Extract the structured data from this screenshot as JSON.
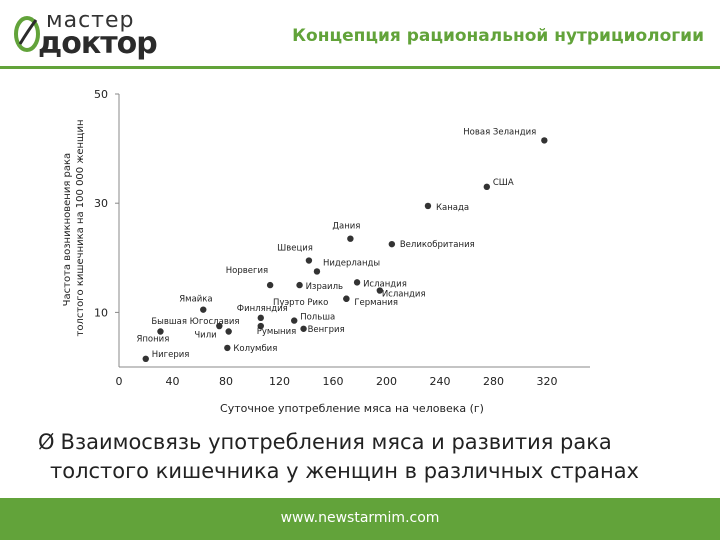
{
  "header": {
    "logo_top": "мастер",
    "logo_bottom": "доктор",
    "title": "Концепция рациональной нутрициологии",
    "accent_color": "#62a33a"
  },
  "chart_data": {
    "type": "scatter",
    "title": "",
    "xlabel": "Суточное употребление мяса на человека (г)",
    "ylabel": "Частота возникновения рака толстого кишечника на 100 000 женщин",
    "xlim": [
      0,
      320
    ],
    "ylim": [
      0,
      50
    ],
    "x_ticks": [
      0,
      40,
      80,
      120,
      160,
      200,
      240,
      280,
      320
    ],
    "y_ticks": [
      10,
      30,
      50
    ],
    "grid": false,
    "points": [
      {
        "label": "Новая Зеландия",
        "x": 318,
        "y": 41.5
      },
      {
        "label": "США",
        "x": 275,
        "y": 33
      },
      {
        "label": "Канада",
        "x": 231,
        "y": 29.5
      },
      {
        "label": "Дания",
        "x": 173,
        "y": 23.5
      },
      {
        "label": "Великобритания",
        "x": 204,
        "y": 22.5
      },
      {
        "label": "Швеция",
        "x": 142,
        "y": 19.5
      },
      {
        "label": "Нидерланды",
        "x": 148,
        "y": 17.5
      },
      {
        "label": "Норвегия",
        "x": 113,
        "y": 15
      },
      {
        "label": "Израиль",
        "x": 135,
        "y": 15
      },
      {
        "label": "Исландия",
        "x": 178,
        "y": 15.5
      },
      {
        "label": "Исландия",
        "x": 195,
        "y": 14
      },
      {
        "label": "Ямайка",
        "x": 63,
        "y": 10.5
      },
      {
        "label": "Финляндия",
        "x": 106,
        "y": 9
      },
      {
        "label": "Пуэрто Рико",
        "x": 170,
        "y": 12.5
      },
      {
        "label": "Германия",
        "x": 170,
        "y": 12.5
      },
      {
        "label": "Бывшая Югославия",
        "x": 75,
        "y": 7.5
      },
      {
        "label": "Чили",
        "x": 82,
        "y": 6.5
      },
      {
        "label": "Румыния",
        "x": 106,
        "y": 7.5
      },
      {
        "label": "Польша",
        "x": 131,
        "y": 8.5
      },
      {
        "label": "Япония",
        "x": 31,
        "y": 6.5
      },
      {
        "label": "Венгрия",
        "x": 138,
        "y": 7
      },
      {
        "label": "Колумбия",
        "x": 81,
        "y": 3.5
      },
      {
        "label": "Нигерия",
        "x": 20,
        "y": 1.5
      }
    ]
  },
  "caption": {
    "arrow": "Ø",
    "line1": "Взаимосвязь употребления мяса и развития рака",
    "line2": "толстого кишечника у женщин в различных странах"
  },
  "footer": {
    "url": "www.newstarmim.com"
  }
}
